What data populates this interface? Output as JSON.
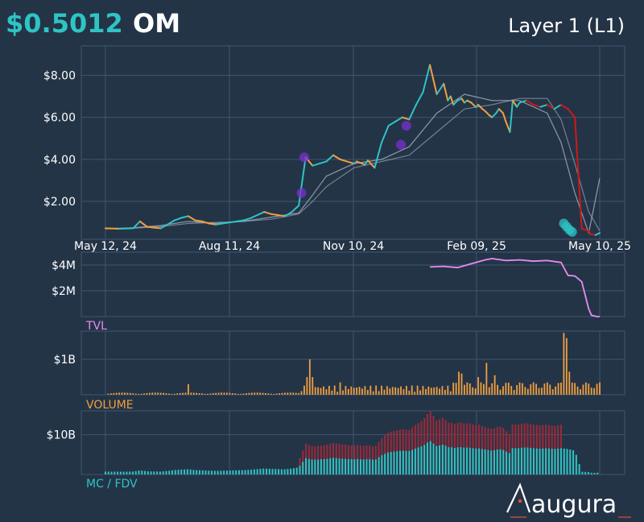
{
  "header": {
    "price": "$0.5012",
    "ticker": "OM",
    "category": "Layer 1 (L1)"
  },
  "colors": {
    "background": "#243447",
    "grid": "#3e5670",
    "price_up": "#2ec4c4",
    "price_mid": "#f0a040",
    "price_down": "#d01818",
    "ma": "#a8b4c0",
    "event_marker": "#7a2fd0",
    "tvl": "#e88cf0",
    "volume": "#f0a040",
    "mc": "#2ec4c4",
    "fdv": "#9a2a3a",
    "text": "#ffffff"
  },
  "brand": {
    "name": "augura"
  },
  "chart_data": [
    {
      "type": "line",
      "name": "price",
      "x_tick_labels": [
        "May 12, 24",
        "Aug 11, 24",
        "Nov 10, 24",
        "Feb 09, 25",
        "May 10, 25"
      ],
      "y_tick_labels": [
        "$2.00",
        "$4.00",
        "$6.00",
        "$8.00"
      ],
      "y_ticks": [
        2,
        4,
        6,
        8
      ],
      "ylim": [
        0.2,
        9.4
      ],
      "x": [
        0,
        10,
        20,
        25,
        30,
        35,
        40,
        45,
        50,
        55,
        60,
        65,
        70,
        75,
        80,
        85,
        90,
        95,
        100,
        105,
        110,
        115,
        120,
        125,
        130,
        135,
        140,
        145,
        150,
        155,
        160,
        165,
        170,
        175,
        180,
        182,
        184,
        186,
        188,
        190,
        195,
        200,
        205,
        210,
        215,
        220,
        225,
        230,
        235,
        240,
        245,
        248,
        250,
        252,
        255,
        258,
        260,
        262,
        265,
        268,
        270,
        273,
        275,
        278,
        280,
        283,
        285,
        288,
        290,
        293,
        295,
        298,
        300,
        305,
        310,
        315,
        320,
        325,
        330,
        335,
        340,
        345,
        350,
        351,
        355,
        358
      ],
      "values": [
        0.72,
        0.7,
        0.72,
        1.05,
        0.8,
        0.75,
        0.72,
        0.9,
        1.1,
        1.22,
        1.3,
        1.1,
        1.05,
        0.95,
        0.9,
        0.95,
        1.0,
        1.05,
        1.1,
        1.2,
        1.35,
        1.5,
        1.4,
        1.35,
        1.3,
        1.5,
        1.8,
        4.1,
        3.7,
        3.8,
        3.9,
        4.2,
        4.0,
        3.9,
        3.8,
        3.9,
        3.85,
        3.8,
        3.75,
        3.95,
        3.6,
        4.8,
        5.6,
        5.8,
        6.0,
        5.9,
        6.6,
        7.2,
        8.5,
        7.1,
        7.6,
        6.8,
        7.0,
        6.6,
        6.8,
        6.9,
        6.7,
        6.8,
        6.7,
        6.5,
        6.6,
        6.4,
        6.3,
        6.1,
        6.0,
        6.2,
        6.4,
        6.2,
        5.8,
        5.3,
        6.8,
        6.5,
        6.7,
        6.8,
        6.6,
        6.5,
        6.6,
        6.4,
        6.6,
        6.4,
        6.0,
        0.7,
        0.6,
        0.45,
        0.4,
        0.5
      ],
      "ma_x": [
        0,
        20,
        40,
        60,
        80,
        100,
        120,
        140,
        150,
        160,
        180,
        200,
        220,
        240,
        260,
        280,
        300,
        320,
        330,
        340,
        350,
        358
      ],
      "ma_values": [
        0.7,
        0.75,
        0.85,
        1.05,
        0.95,
        1.05,
        1.25,
        1.45,
        2.3,
        3.2,
        3.8,
        4.0,
        4.6,
        6.2,
        7.1,
        6.8,
        6.8,
        6.2,
        4.8,
        2.4,
        0.5,
        3.1
      ],
      "ma2_values": [
        0.7,
        0.72,
        0.8,
        0.95,
        1.0,
        1.05,
        1.15,
        1.4,
        2.0,
        2.7,
        3.6,
        3.9,
        4.2,
        5.3,
        6.4,
        6.6,
        6.9,
        6.9,
        5.9,
        3.8,
        1.5,
        0.6
      ],
      "events": [
        {
          "x": 142,
          "y": 2.4
        },
        {
          "x": 144,
          "y": 4.1
        },
        {
          "x": 214,
          "y": 4.7
        },
        {
          "x": 218,
          "y": 5.6
        },
        {
          "x": 332,
          "y": 0.95
        },
        {
          "x": 334,
          "y": 0.8
        },
        {
          "x": 336,
          "y": 0.65
        },
        {
          "x": 338,
          "y": 0.55
        }
      ]
    },
    {
      "type": "line",
      "name": "TVL",
      "y_tick_labels": [
        "$2M",
        "$4M"
      ],
      "y_ticks": [
        2000000,
        4000000
      ],
      "ylim": [
        0,
        5000000
      ],
      "x": [
        235,
        245,
        255,
        265,
        270,
        275,
        280,
        290,
        300,
        310,
        320,
        330,
        335,
        340,
        345,
        350,
        352,
        356,
        358
      ],
      "values": [
        3850000,
        3900000,
        3800000,
        4100000,
        4250000,
        4400000,
        4500000,
        4350000,
        4400000,
        4300000,
        4350000,
        4200000,
        3200000,
        3150000,
        2700000,
        600000,
        100000,
        0,
        0
      ]
    },
    {
      "type": "bar",
      "name": "VOLUME",
      "y_tick_labels": [
        "$1B"
      ],
      "y_ticks": [
        1000000000
      ],
      "ylim": [
        0,
        1800000000
      ],
      "spikes": [
        {
          "x": 60,
          "v": 300000000
        },
        {
          "x": 145,
          "v": 500000000
        },
        {
          "x": 147,
          "v": 1000000000
        },
        {
          "x": 148,
          "v": 850000000
        },
        {
          "x": 149,
          "v": 500000000
        },
        {
          "x": 170,
          "v": 350000000
        },
        {
          "x": 255,
          "v": 650000000
        },
        {
          "x": 258,
          "v": 600000000
        },
        {
          "x": 270,
          "v": 500000000
        },
        {
          "x": 276,
          "v": 900000000
        },
        {
          "x": 282,
          "v": 550000000
        },
        {
          "x": 331,
          "v": 1750000000
        },
        {
          "x": 333,
          "v": 1600000000
        },
        {
          "x": 335,
          "v": 650000000
        }
      ]
    },
    {
      "type": "bar",
      "name": "MC / FDV",
      "y_tick_labels": [
        "$10B"
      ],
      "y_ticks": [
        10000000000
      ],
      "ylim": [
        0,
        16000000000
      ],
      "series": [
        {
          "name": "MC"
        },
        {
          "name": "FDV"
        }
      ]
    }
  ]
}
